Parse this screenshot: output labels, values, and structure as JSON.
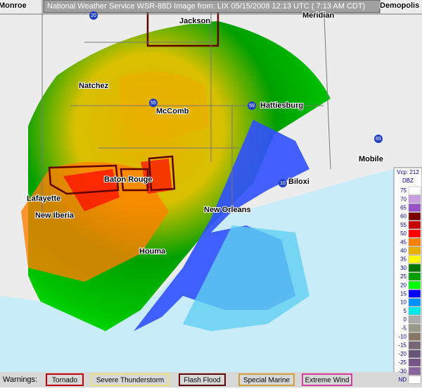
{
  "header": {
    "title": "National Weather Service WSR-88D Image from: LIX 05/15/2008 12:13 UTC ( 7:13 AM CDT)"
  },
  "cities": [
    "Monroe",
    "Jackson",
    "Meridian",
    "Demopolis",
    "Natchez",
    "McComb",
    "Hattiesburg",
    "Mobile",
    "Baton Rouge",
    "Biloxi",
    "Lafayette",
    "New Iberia",
    "New Orleans",
    "Houma"
  ],
  "highways": [
    "20",
    "55",
    "59",
    "65",
    "10"
  ],
  "legend": {
    "title": "Vcp: 212",
    "unit": "DBZ",
    "levels": [
      "75",
      "70",
      "65",
      "60",
      "55",
      "50",
      "45",
      "40",
      "35",
      "30",
      "25",
      "20",
      "15",
      "10",
      "5",
      "0",
      "-5",
      "-10",
      "-15",
      "-20",
      "-25",
      "-30",
      "ND"
    ],
    "colors": [
      "#ffffff",
      "#c8a0e0",
      "#9850c8",
      "#780000",
      "#c80000",
      "#ff0000",
      "#ff8000",
      "#e8b000",
      "#ffff00",
      "#007800",
      "#00a000",
      "#00ff00",
      "#0000ff",
      "#0090ff",
      "#00e8e8",
      "#aaaaaa",
      "#999988",
      "#887766",
      "#776677",
      "#665577",
      "#775588",
      "#886699",
      "#ffffff"
    ]
  },
  "warnings": {
    "label": "Warnings:",
    "items": [
      "Tornado",
      "Severe Thunderstorm",
      "Flash Flood",
      "Special Marine",
      "Extreme Wind"
    ],
    "colors": [
      "#c00000",
      "#e8e080",
      "#600000",
      "#d0a040",
      "#d040a0"
    ]
  }
}
